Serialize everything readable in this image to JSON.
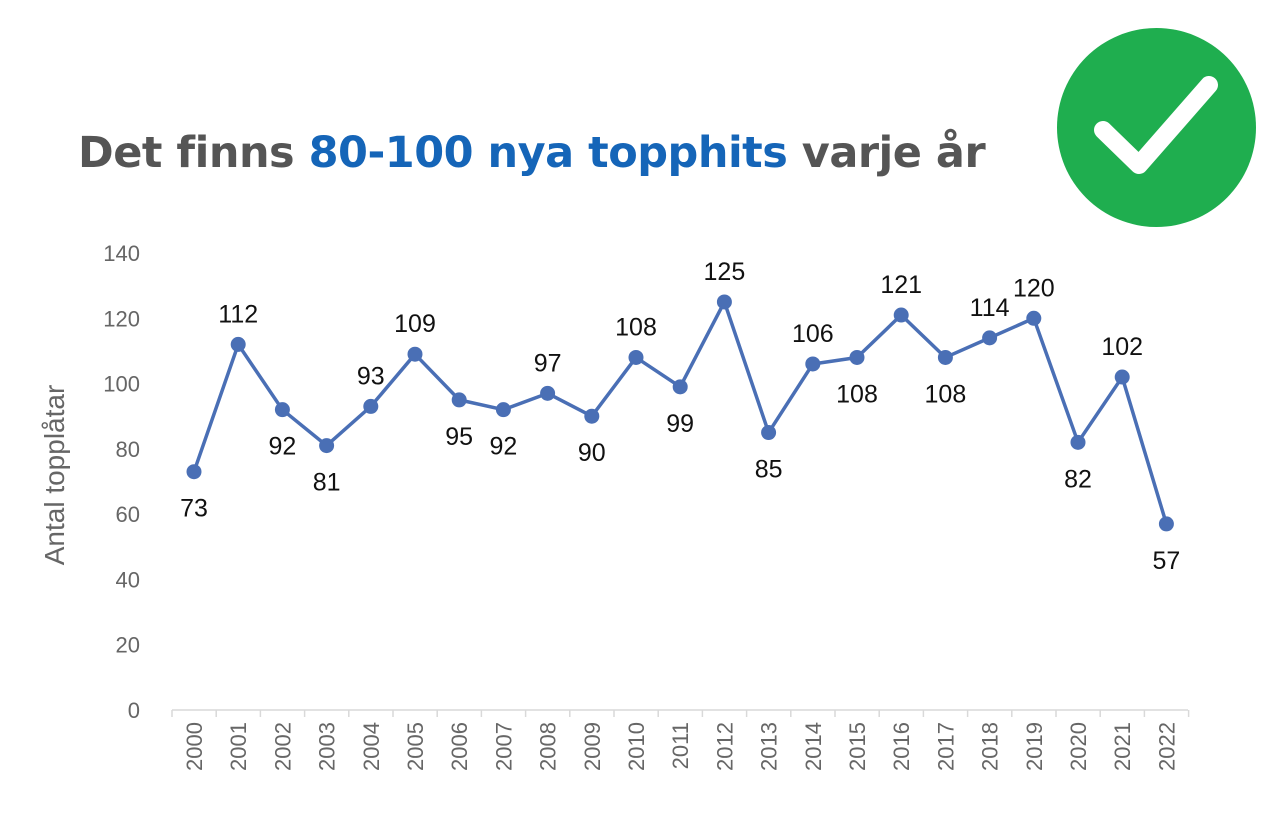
{
  "title": {
    "part1": "Det finns ",
    "highlight": "80-100 nya topphits",
    "part2": " varje år"
  },
  "badge": {
    "icon": "checkmark-icon",
    "color": "#1fae4f"
  },
  "colors": {
    "line": "#4a6fb5",
    "title": "#555555",
    "highlight": "#1565b8"
  },
  "chart_data": {
    "type": "line",
    "ylabel": "Antal topplåtar",
    "ylim": [
      0,
      140
    ],
    "yticks": [
      0,
      20,
      40,
      60,
      80,
      100,
      120,
      140
    ],
    "grid": false,
    "categories": [
      "2000",
      "2001",
      "2002",
      "2003",
      "2004",
      "2005",
      "2006",
      "2007",
      "2008",
      "2009",
      "2010",
      "2011",
      "2012",
      "2013",
      "2014",
      "2015",
      "2016",
      "2017",
      "2018",
      "2019",
      "2020",
      "2021",
      "2022"
    ],
    "values": [
      73,
      112,
      92,
      81,
      93,
      109,
      95,
      92,
      97,
      90,
      108,
      99,
      125,
      85,
      106,
      108,
      121,
      108,
      114,
      120,
      82,
      102,
      57
    ],
    "label_positions": [
      "below",
      "above",
      "below",
      "below",
      "above",
      "above",
      "below",
      "below",
      "above",
      "below",
      "above",
      "below",
      "above",
      "below",
      "above",
      "below",
      "above",
      "below",
      "above",
      "above",
      "below",
      "above",
      "below"
    ]
  }
}
